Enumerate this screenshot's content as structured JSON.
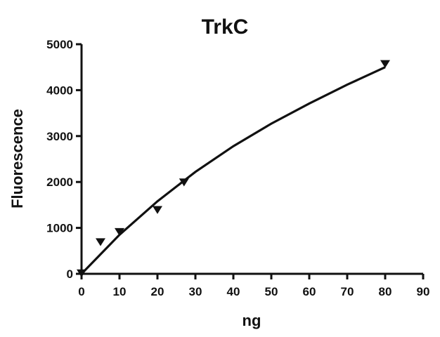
{
  "chart_data": {
    "type": "scatter",
    "title": "TrkC",
    "xlabel": "ng",
    "ylabel": "Fluorescence",
    "xlim": [
      0,
      90
    ],
    "ylim": [
      0,
      5000
    ],
    "x_ticks": [
      "0",
      "10",
      "20",
      "30",
      "40",
      "50",
      "60",
      "70",
      "80",
      "90"
    ],
    "y_ticks": [
      "0",
      "1000",
      "2000",
      "3000",
      "4000",
      "5000"
    ],
    "grid": false,
    "legend": "none",
    "series": [
      {
        "marker": "triangle-down",
        "x": [
          0,
          5,
          10,
          20,
          27,
          80
        ],
        "y": [
          20,
          700,
          920,
          1400,
          2000,
          4580
        ]
      }
    ],
    "fit_curve": {
      "x": [
        0,
        10,
        20,
        30,
        40,
        50,
        60,
        70,
        80
      ],
      "y": [
        0,
        850,
        1580,
        2220,
        2780,
        3270,
        3710,
        4120,
        4500
      ]
    },
    "colors": {
      "axis": "#111111",
      "marker": "#111111",
      "curve": "#111111"
    }
  }
}
